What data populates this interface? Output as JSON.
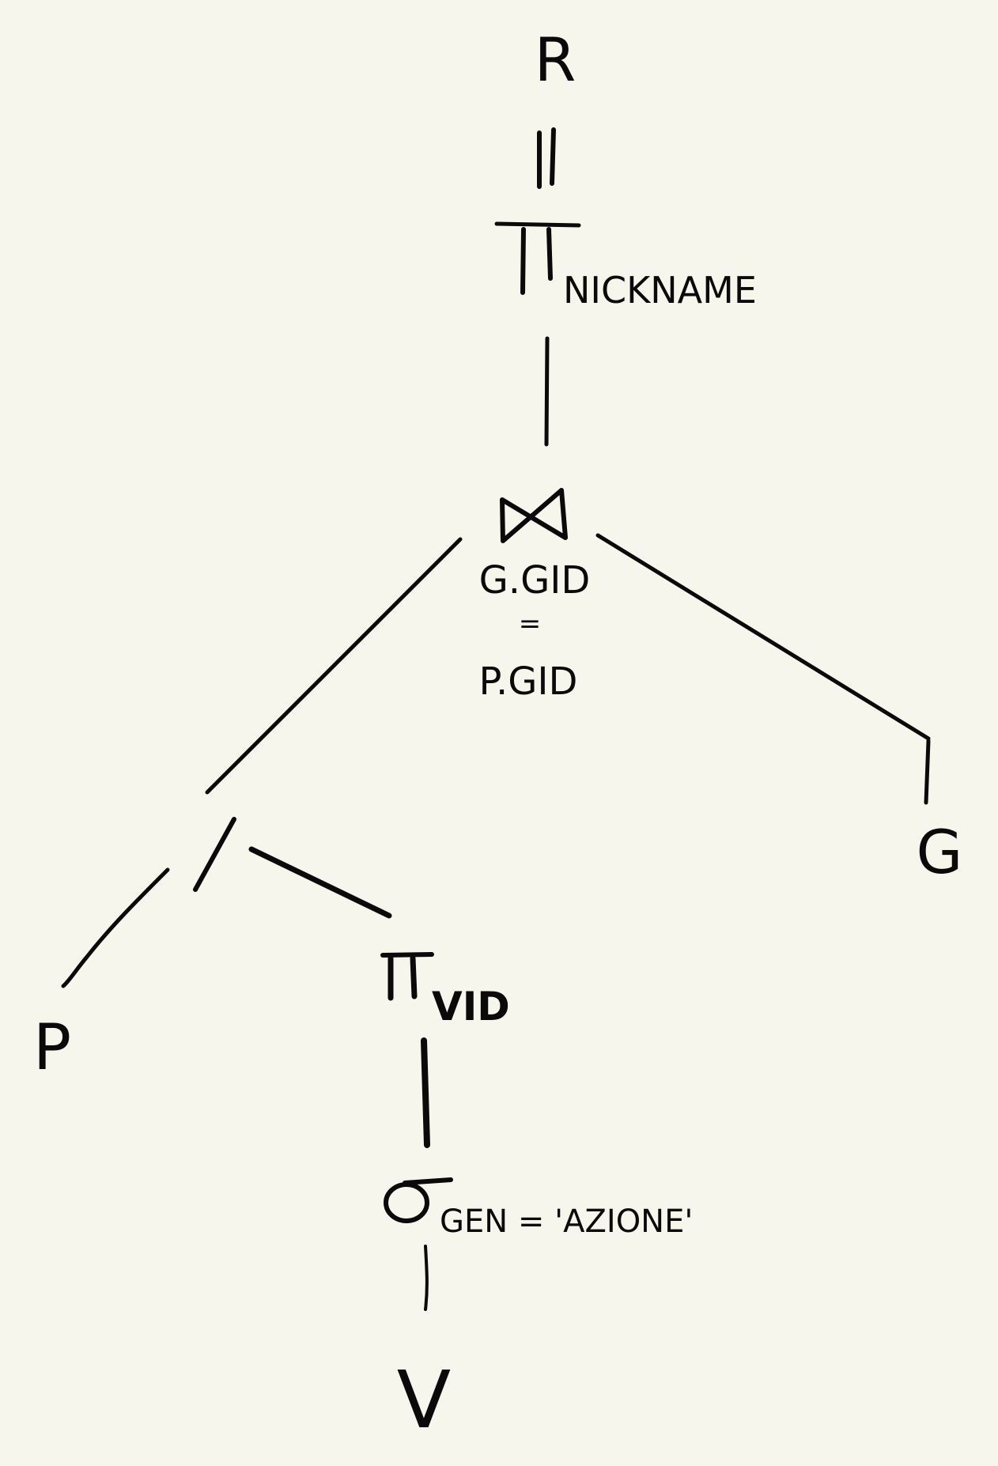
{
  "diagram": {
    "result": "R",
    "projection_top": {
      "symbol": "Π",
      "subscript": "NICKNAME"
    },
    "join": {
      "condition_left": "G.GID",
      "condition_op": "=",
      "condition_right": "P.GID"
    },
    "division": {
      "symbol": "/"
    },
    "leaf_p": "P",
    "leaf_g": "G",
    "projection_vid": {
      "symbol": "Π",
      "subscript": "VID"
    },
    "selection": {
      "symbol": "σ",
      "subscript": "GEN = 'AZIONE'"
    },
    "leaf_v": "V"
  }
}
